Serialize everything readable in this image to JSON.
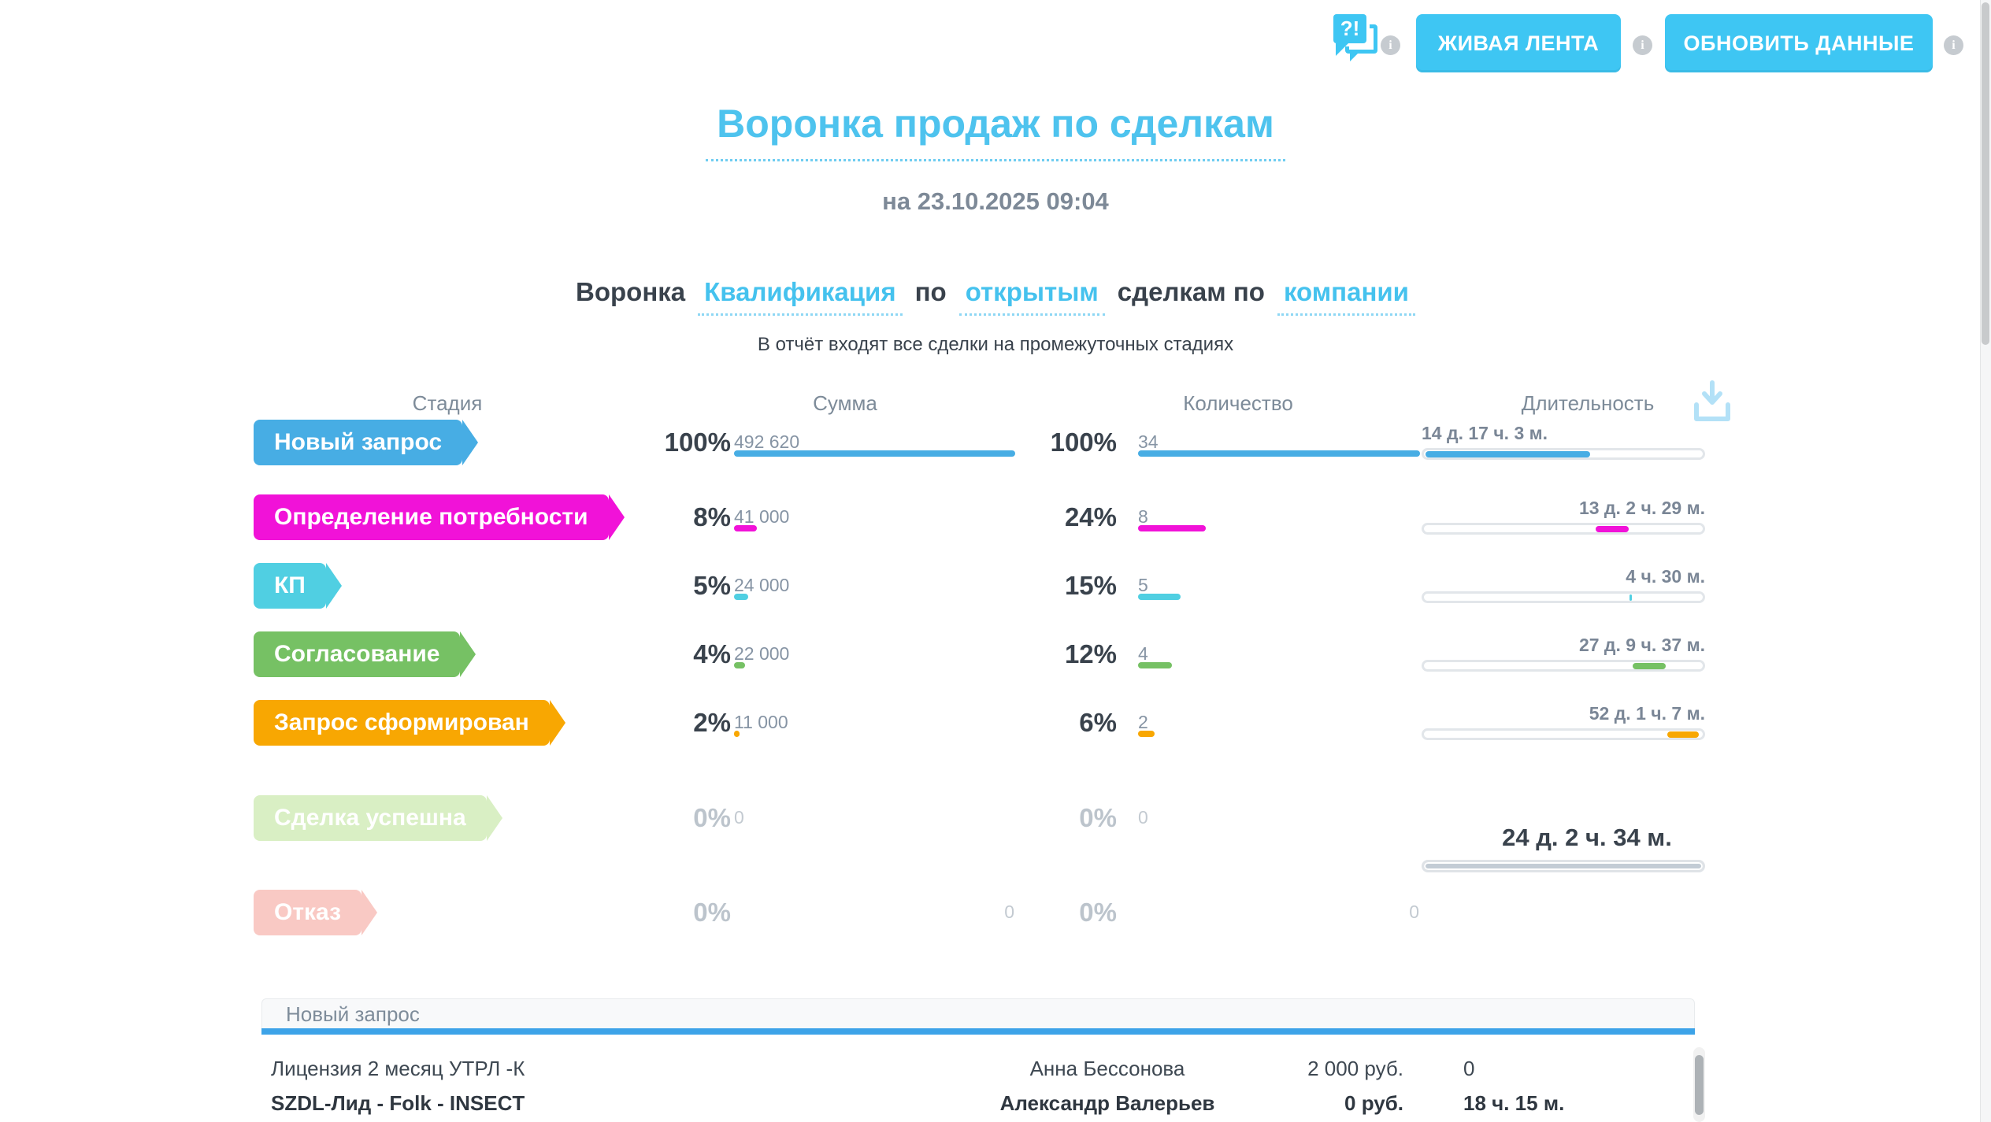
{
  "toolbar": {
    "chat_badge": "?!",
    "info_glyph": "i",
    "buttons": [
      {
        "label": "ЖИВАЯ ЛЕНТА"
      },
      {
        "label": "ОБНОВИТЬ ДАННЫЕ"
      }
    ],
    "accent_color": "#3ec6f3"
  },
  "report": {
    "title": "Воронка продаж по сделкам",
    "timestamp": "на 23.10.2025 09:04",
    "filter": {
      "label": "Воронка",
      "funnel": "Квалификация",
      "preposition1": "по",
      "deal_state": "открытым",
      "preposition2": "сделкам по",
      "grouping": "компании"
    },
    "note": "В отчёт входят все сделки на промежуточных стадиях"
  },
  "funnel": {
    "headers": {
      "stage": "Стадия",
      "sum": "Сумма",
      "count": "Количество",
      "duration": "Длительность"
    },
    "rows": [
      {
        "stage": "Новый запрос",
        "color": "#47ade4",
        "sum_pct": "100%",
        "sum_value": "492 620",
        "sum_bar_pct": 100,
        "count_pct": "100%",
        "count_value": "34",
        "count_bar_pct": 100,
        "duration": "14 д. 17 ч. 3 м.",
        "seg_start": 0.5,
        "seg_width": 59,
        "duration_align": "left",
        "muted": false,
        "zeros_right": false
      },
      {
        "stage": "Определение потребности",
        "color": "#f112d8",
        "sum_pct": "8%",
        "sum_value": "41 000",
        "sum_bar_pct": 8,
        "count_pct": "24%",
        "count_value": "8",
        "count_bar_pct": 24,
        "duration": "13 д. 2 ч. 29 м.",
        "seg_start": 61.5,
        "seg_width": 12,
        "duration_align": "right",
        "muted": false,
        "zeros_right": false
      },
      {
        "stage": "КП",
        "color": "#50cfe2",
        "sum_pct": "5%",
        "sum_value": "24 000",
        "sum_bar_pct": 5,
        "count_pct": "15%",
        "count_value": "5",
        "count_bar_pct": 15,
        "duration": "4 ч. 30 м.",
        "seg_start": 73.8,
        "seg_width": 0.9,
        "duration_align": "right",
        "muted": false,
        "zeros_right": false
      },
      {
        "stage": "Согласование",
        "color": "#76c164",
        "sum_pct": "4%",
        "sum_value": "22 000",
        "sum_bar_pct": 4,
        "count_pct": "12%",
        "count_value": "4",
        "count_bar_pct": 12,
        "duration": "27 д. 9 ч. 37 м.",
        "seg_start": 74.8,
        "seg_width": 12,
        "duration_align": "right",
        "muted": false,
        "zeros_right": false
      },
      {
        "stage": "Запрос сформирован",
        "color": "#f8a702",
        "sum_pct": "2%",
        "sum_value": "11 000",
        "sum_bar_pct": 2,
        "count_pct": "6%",
        "count_value": "2",
        "count_bar_pct": 6,
        "duration": "52 д. 1 ч. 7 м.",
        "seg_start": 87.2,
        "seg_width": 11.5,
        "duration_align": "right",
        "muted": false,
        "zeros_right": false
      },
      {
        "stage": "Сделка успешна",
        "color": "#d9efc4",
        "sum_pct": "0%",
        "sum_value": "0",
        "sum_bar_pct": 0,
        "count_pct": "0%",
        "count_value": "0",
        "count_bar_pct": 0,
        "duration": null,
        "muted": true,
        "zeros_right": false
      },
      {
        "stage": "Отказ",
        "color": "#f9c9c4",
        "sum_pct": "0%",
        "sum_value": "0",
        "sum_bar_pct": 0,
        "count_pct": "0%",
        "count_value": "0",
        "count_bar_pct": 0,
        "duration": null,
        "muted": true,
        "zeros_right": true
      }
    ],
    "total_duration": "24 д. 2 ч. 34 м."
  },
  "details": {
    "header": "Новый запрос",
    "rows": [
      {
        "deal": "Лицензия 2 месяц УТРЛ -К",
        "person": "Анна Бессонова",
        "amount": "2 000 руб.",
        "duration": "0",
        "bold": false
      },
      {
        "deal": "SZDL-Лид - Folk - INSECT",
        "person": "Александр Валерьев",
        "amount": "0 руб.",
        "duration": "18 ч. 15 м.",
        "bold": true
      }
    ]
  }
}
